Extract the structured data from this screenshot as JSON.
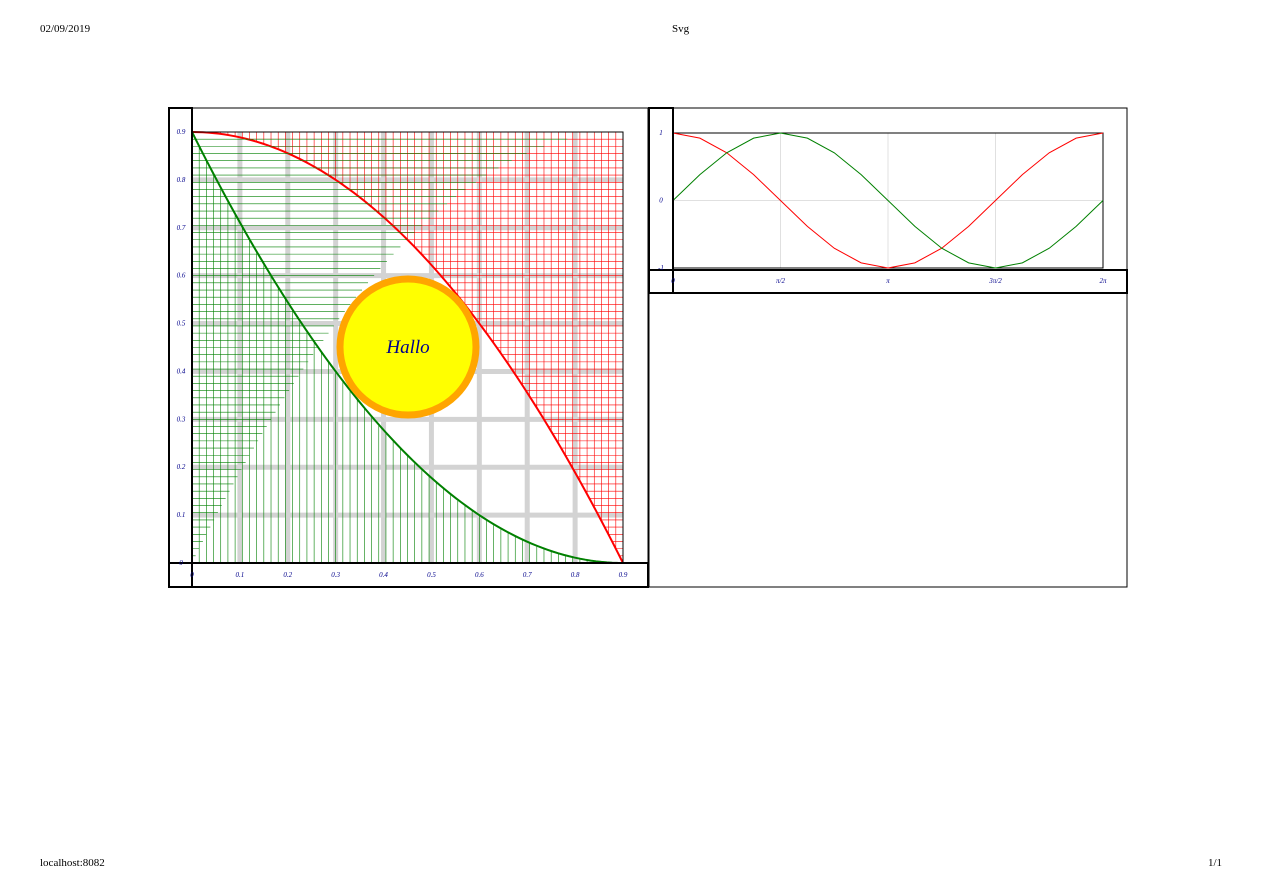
{
  "print_header": {
    "date": "02/09/2019",
    "title": "Svg"
  },
  "print_footer": {
    "url": "localhost:8082",
    "page": "1/1"
  },
  "left_panel": {
    "circle_label": "Hallo",
    "y_ticks": [
      "0",
      "0.1",
      "0.2",
      "0.3",
      "0.4",
      "0.5",
      "0.6",
      "0.7",
      "0.8",
      "0.9"
    ],
    "x_ticks": [
      "0",
      "0.1",
      "0.2",
      "0.3",
      "0.4",
      "0.5",
      "0.6",
      "0.7",
      "0.8",
      "0.9"
    ],
    "colors": {
      "upper_mesh": "#ff0000",
      "lower_mesh": "#008000",
      "grid": "#d3d3d3",
      "circle_fill": "#ffff00",
      "circle_stroke": "#ffa500",
      "tick_text": "#00008b"
    }
  },
  "chart_data": {
    "type": "line",
    "x": [
      0,
      0.3927,
      0.7854,
      1.1781,
      1.5708,
      1.9635,
      2.3562,
      2.7489,
      3.1416,
      3.5343,
      3.927,
      4.3197,
      4.7124,
      5.1051,
      5.4978,
      5.8905,
      6.2832
    ],
    "series": [
      {
        "color": "#ff0000",
        "values": [
          1,
          0.924,
          0.707,
          0.383,
          0,
          -0.383,
          -0.707,
          -0.924,
          -1,
          -0.924,
          -0.707,
          -0.383,
          0,
          0.383,
          0.707,
          0.924,
          1
        ]
      },
      {
        "color": "#008000",
        "values": [
          0,
          0.383,
          0.707,
          0.924,
          1,
          0.924,
          0.707,
          0.383,
          0,
          -0.383,
          -0.707,
          -0.924,
          -1,
          -0.924,
          -0.707,
          -0.383,
          0
        ]
      }
    ],
    "x_tick_labels": [
      "0",
      "π/2",
      "π",
      "3π/2",
      "2π"
    ],
    "y_tick_labels": [
      "1",
      "0",
      "-1"
    ],
    "xlim": [
      0,
      6.2832
    ],
    "ylim": [
      -1,
      1
    ],
    "grid": true
  }
}
